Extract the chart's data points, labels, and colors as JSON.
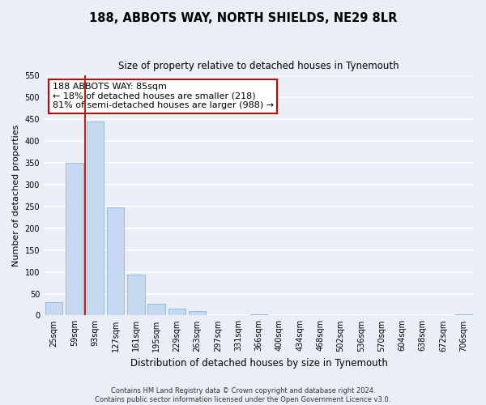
{
  "title": "188, ABBOTS WAY, NORTH SHIELDS, NE29 8LR",
  "subtitle": "Size of property relative to detached houses in Tynemouth",
  "xlabel": "Distribution of detached houses by size in Tynemouth",
  "ylabel": "Number of detached properties",
  "bar_labels": [
    "25sqm",
    "59sqm",
    "93sqm",
    "127sqm",
    "161sqm",
    "195sqm",
    "229sqm",
    "263sqm",
    "297sqm",
    "331sqm",
    "366sqm",
    "400sqm",
    "434sqm",
    "468sqm",
    "502sqm",
    "536sqm",
    "570sqm",
    "604sqm",
    "638sqm",
    "672sqm",
    "706sqm"
  ],
  "bar_values": [
    30,
    350,
    445,
    248,
    93,
    27,
    15,
    10,
    0,
    0,
    3,
    0,
    0,
    0,
    0,
    0,
    0,
    0,
    0,
    0,
    3
  ],
  "bar_color": "#c6d9f0",
  "bar_edge_color": "#8db4d9",
  "vline_x": 1.5,
  "vline_color": "#cc0000",
  "ylim": [
    0,
    550
  ],
  "yticks": [
    0,
    50,
    100,
    150,
    200,
    250,
    300,
    350,
    400,
    450,
    500,
    550
  ],
  "annotation_text": "188 ABBOTS WAY: 85sqm\n← 18% of detached houses are smaller (218)\n81% of semi-detached houses are larger (988) →",
  "annotation_box_color": "#ffffff",
  "annotation_box_edge": "#cc0000",
  "footnote": "Contains HM Land Registry data © Crown copyright and database right 2024.\nContains public sector information licensed under the Open Government Licence v3.0.",
  "bg_color": "#eaeff7",
  "grid_color": "#ffffff",
  "title_fontsize": 10.5,
  "subtitle_fontsize": 8.5,
  "xlabel_fontsize": 8.5,
  "ylabel_fontsize": 8,
  "tick_fontsize": 7,
  "annot_fontsize": 8,
  "footnote_fontsize": 6
}
